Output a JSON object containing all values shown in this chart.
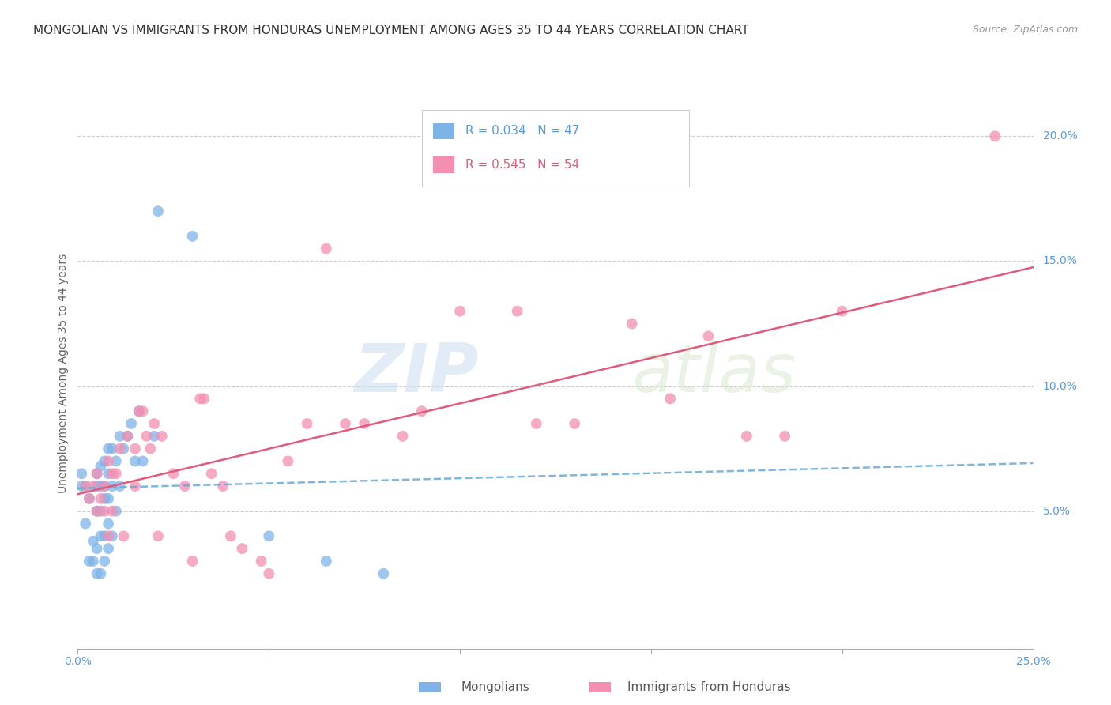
{
  "title": "MONGOLIAN VS IMMIGRANTS FROM HONDURAS UNEMPLOYMENT AMONG AGES 35 TO 44 YEARS CORRELATION CHART",
  "source": "Source: ZipAtlas.com",
  "ylabel": "Unemployment Among Ages 35 to 44 years",
  "xlim": [
    0.0,
    0.25
  ],
  "ylim": [
    -0.005,
    0.215
  ],
  "xticks": [
    0.0,
    0.05,
    0.1,
    0.15,
    0.2,
    0.25
  ],
  "xticklabels": [
    "0.0%",
    "",
    "",
    "",
    "",
    "25.0%"
  ],
  "yticks_right": [
    0.05,
    0.1,
    0.15,
    0.2
  ],
  "yticklabels_right": [
    "5.0%",
    "10.0%",
    "15.0%",
    "20.0%"
  ],
  "legend_mongolian": "R = 0.034   N = 47",
  "legend_honduras": "R = 0.545   N = 54",
  "mongolian_color": "#7fb3e8",
  "honduras_color": "#f48fb1",
  "trendline_mongolian_color": "#6aaad4",
  "trendline_honduras_color": "#e05c7a",
  "watermark_zip": "ZIP",
  "watermark_atlas": "atlas",
  "background_color": "#ffffff",
  "grid_color": "#cccccc",
  "title_fontsize": 11,
  "axis_fontsize": 10,
  "tick_fontsize": 10,
  "mongolian_x": [
    0.001,
    0.001,
    0.002,
    0.002,
    0.003,
    0.003,
    0.004,
    0.004,
    0.005,
    0.005,
    0.005,
    0.005,
    0.005,
    0.006,
    0.006,
    0.006,
    0.006,
    0.006,
    0.007,
    0.007,
    0.007,
    0.007,
    0.007,
    0.008,
    0.008,
    0.008,
    0.008,
    0.008,
    0.009,
    0.009,
    0.009,
    0.01,
    0.01,
    0.011,
    0.011,
    0.012,
    0.013,
    0.014,
    0.015,
    0.016,
    0.017,
    0.02,
    0.021,
    0.03,
    0.05,
    0.065,
    0.08
  ],
  "mongolian_y": [
    0.06,
    0.065,
    0.045,
    0.06,
    0.03,
    0.055,
    0.03,
    0.038,
    0.025,
    0.035,
    0.05,
    0.06,
    0.065,
    0.025,
    0.04,
    0.05,
    0.06,
    0.068,
    0.03,
    0.04,
    0.055,
    0.06,
    0.07,
    0.035,
    0.045,
    0.055,
    0.065,
    0.075,
    0.04,
    0.06,
    0.075,
    0.05,
    0.07,
    0.06,
    0.08,
    0.075,
    0.08,
    0.085,
    0.07,
    0.09,
    0.07,
    0.08,
    0.17,
    0.16,
    0.04,
    0.03,
    0.025
  ],
  "honduras_x": [
    0.002,
    0.003,
    0.004,
    0.005,
    0.005,
    0.006,
    0.007,
    0.007,
    0.008,
    0.008,
    0.009,
    0.009,
    0.01,
    0.011,
    0.012,
    0.013,
    0.015,
    0.015,
    0.016,
    0.017,
    0.018,
    0.019,
    0.02,
    0.021,
    0.022,
    0.025,
    0.028,
    0.03,
    0.032,
    0.033,
    0.035,
    0.038,
    0.04,
    0.043,
    0.048,
    0.05,
    0.055,
    0.06,
    0.065,
    0.07,
    0.075,
    0.085,
    0.09,
    0.1,
    0.115,
    0.12,
    0.13,
    0.145,
    0.155,
    0.165,
    0.175,
    0.185,
    0.2,
    0.24
  ],
  "honduras_y": [
    0.06,
    0.055,
    0.06,
    0.05,
    0.065,
    0.055,
    0.05,
    0.06,
    0.04,
    0.07,
    0.05,
    0.065,
    0.065,
    0.075,
    0.04,
    0.08,
    0.06,
    0.075,
    0.09,
    0.09,
    0.08,
    0.075,
    0.085,
    0.04,
    0.08,
    0.065,
    0.06,
    0.03,
    0.095,
    0.095,
    0.065,
    0.06,
    0.04,
    0.035,
    0.03,
    0.025,
    0.07,
    0.085,
    0.155,
    0.085,
    0.085,
    0.08,
    0.09,
    0.13,
    0.13,
    0.085,
    0.085,
    0.125,
    0.095,
    0.12,
    0.08,
    0.08,
    0.13,
    0.2
  ]
}
